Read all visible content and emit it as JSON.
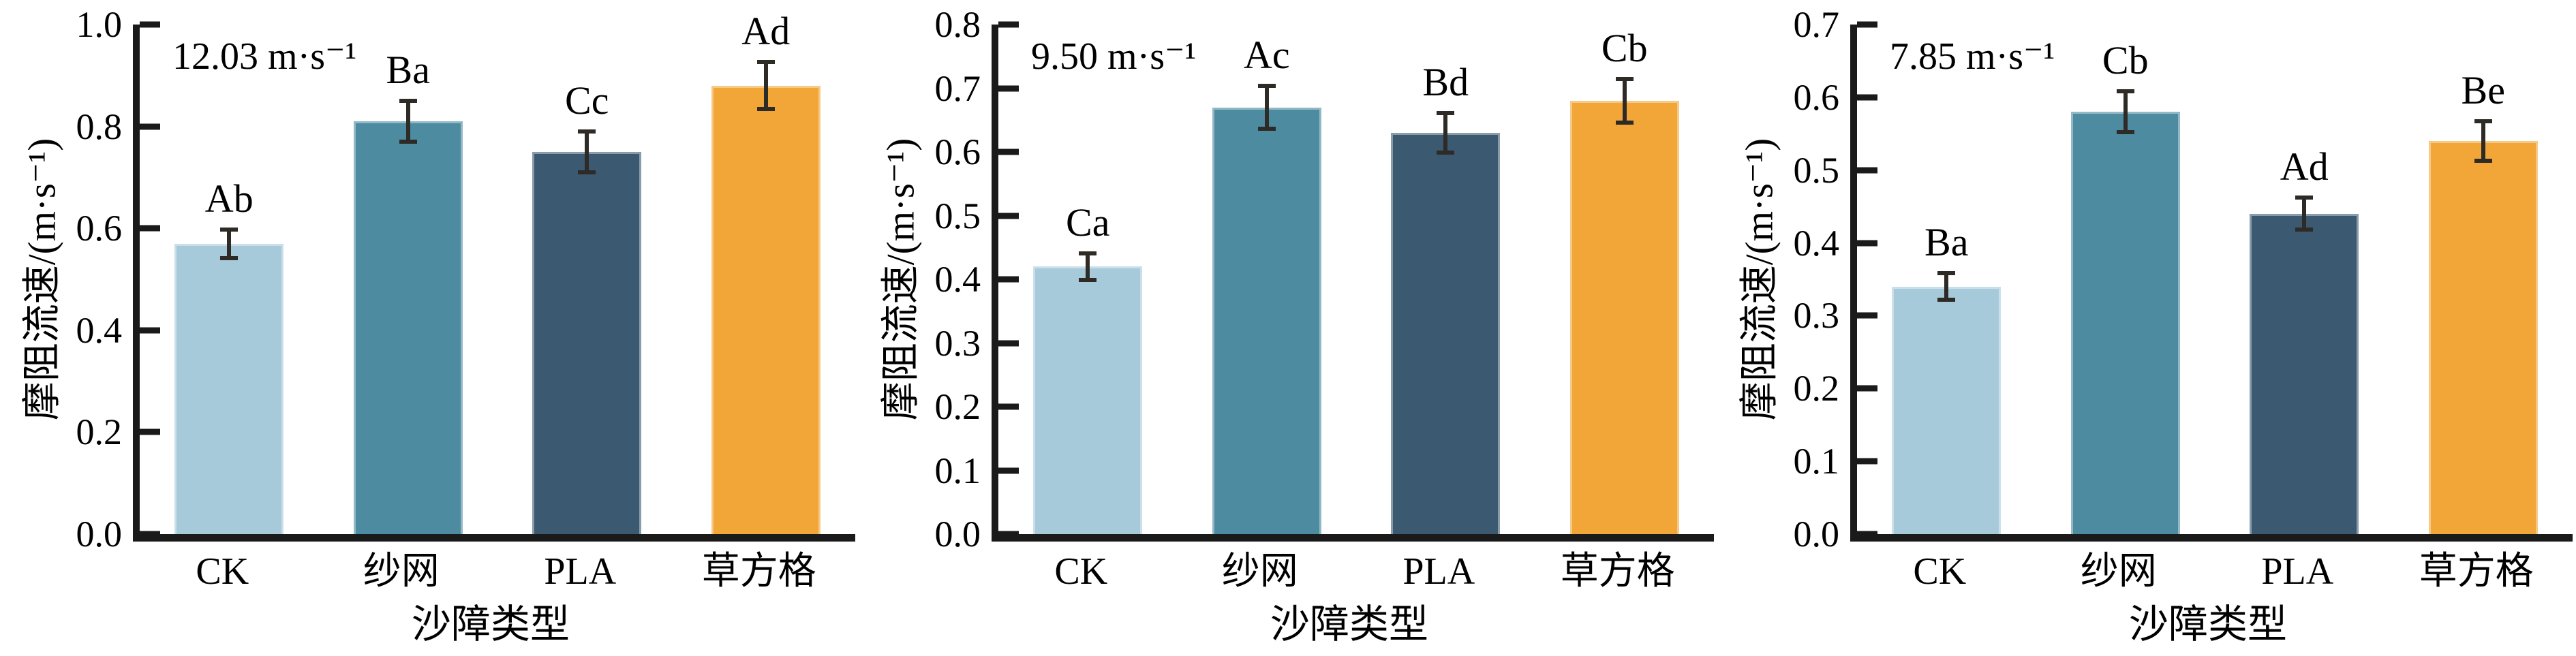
{
  "figure": {
    "description": "摩阻流速与沙障类型柱状图（三个风速）",
    "axis_color": "#1a1a1a",
    "error_bar_color": "#2e2a26",
    "text_color": "#000000",
    "bar_colors": [
      "#a7cadb",
      "#4d8ba1",
      "#3b5a72",
      "#f2a637"
    ]
  },
  "chart_data": [
    {
      "type": "bar",
      "annotation": "12.03 m·s⁻¹",
      "xlabel": "沙障类型",
      "ylabel": "摩阻流速/(m·s⁻¹)",
      "categories": [
        "CK",
        "纱网",
        "PLA",
        "草方格"
      ],
      "values": [
        0.57,
        0.81,
        0.75,
        0.88
      ],
      "errors": [
        0.028,
        0.04,
        0.04,
        0.046
      ],
      "sig_labels": [
        "Ab",
        "Ba",
        "Cc",
        "Ad"
      ],
      "ylim": [
        0,
        1.0
      ],
      "yticks": [
        "0.0",
        "0.2",
        "0.4",
        "0.6",
        "0.8",
        "1.0"
      ],
      "grid": false,
      "legend": false
    },
    {
      "type": "bar",
      "annotation": "9.50 m·s⁻¹",
      "xlabel": "沙障类型",
      "ylabel": "摩阻流速/(m·s⁻¹)",
      "categories": [
        "CK",
        "纱网",
        "PLA",
        "草方格"
      ],
      "values": [
        0.42,
        0.67,
        0.63,
        0.68
      ],
      "errors": [
        0.021,
        0.034,
        0.031,
        0.034
      ],
      "sig_labels": [
        "Ca",
        "Ac",
        "Bd",
        "Cb"
      ],
      "ylim": [
        0,
        0.8
      ],
      "yticks": [
        "0.0",
        "0.1",
        "0.2",
        "0.3",
        "0.4",
        "0.5",
        "0.6",
        "0.7",
        "0.8"
      ],
      "grid": false,
      "legend": false
    },
    {
      "type": "bar",
      "annotation": "7.85 m·s⁻¹",
      "xlabel": "沙障类型",
      "ylabel": "摩阻流速/(m·s⁻¹)",
      "categories": [
        "CK",
        "纱网",
        "PLA",
        "草方格"
      ],
      "values": [
        0.34,
        0.58,
        0.44,
        0.54
      ],
      "errors": [
        0.018,
        0.028,
        0.022,
        0.027
      ],
      "sig_labels": [
        "Ba",
        "Cb",
        "Ad",
        "Be"
      ],
      "ylim": [
        0,
        0.7
      ],
      "yticks": [
        "0.0",
        "0.1",
        "0.2",
        "0.3",
        "0.4",
        "0.5",
        "0.6",
        "0.7"
      ],
      "grid": false,
      "legend": false
    }
  ]
}
